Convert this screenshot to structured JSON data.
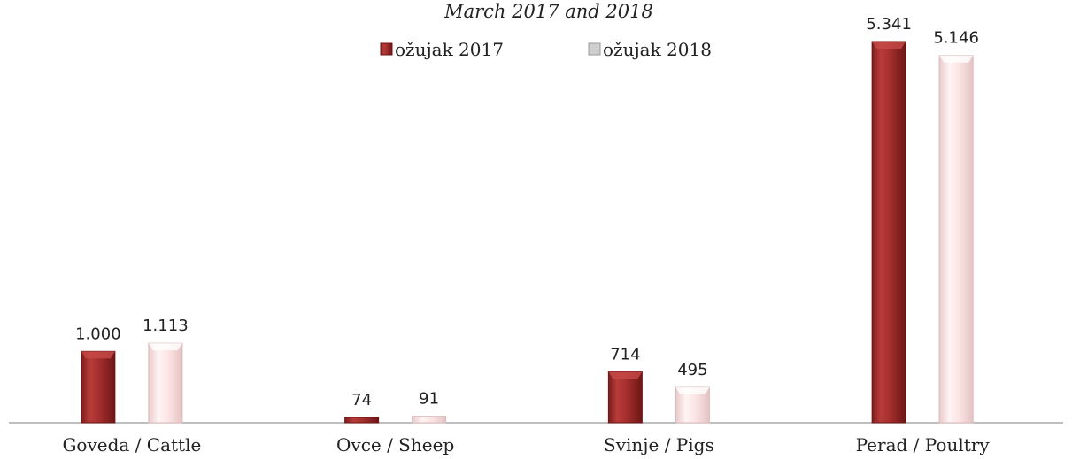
{
  "chart_data": {
    "type": "bar",
    "title": "March 2017 and 2018",
    "categories": [
      "Goveda / Cattle",
      "Ovce / Sheep",
      "Svinje / Pigs",
      "Perad / Poultry"
    ],
    "series": [
      {
        "name": "ožujak 2017",
        "values": [
          1000,
          74,
          714,
          5341
        ],
        "labels": [
          "1.000",
          "74",
          "714",
          "5.341"
        ],
        "color": "#a8302f"
      },
      {
        "name": "ožujak 2018",
        "values": [
          1113,
          91,
          495,
          5146
        ],
        "labels": [
          "1.113",
          "91",
          "495",
          "5.146"
        ],
        "color": "#f7dede"
      }
    ],
    "ylim": [
      0,
      5341
    ],
    "grid": false,
    "legend": "top-center"
  }
}
